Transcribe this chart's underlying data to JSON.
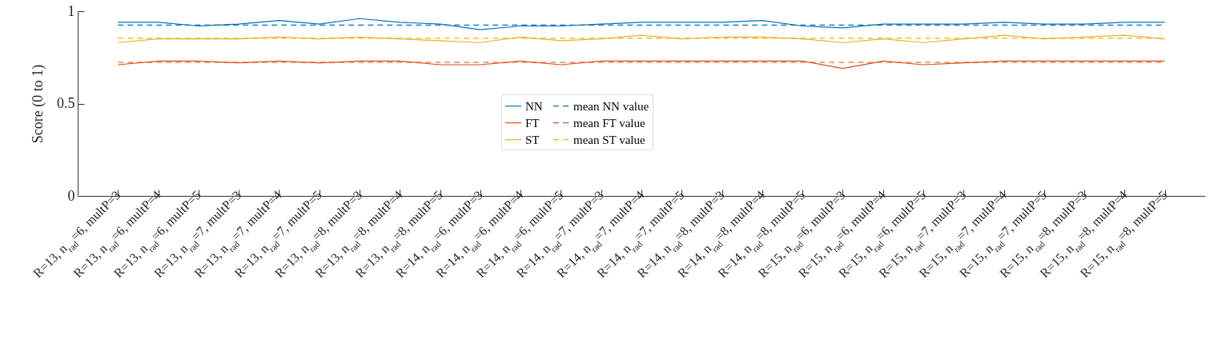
{
  "chart_data": {
    "type": "line",
    "ylabel": "Score (0 to 1)",
    "ylim": [
      0,
      1
    ],
    "yticks": [
      0,
      0.5,
      1
    ],
    "legend": "center",
    "grid": false,
    "categories": [
      "R=13, n$_{rad}$=6, multP=3",
      "R=13, n$_{rad}$=6, multP=4",
      "R=13, n$_{rad}$=6, multP=5",
      "R=13, n$_{rad}$=7, multP=3",
      "R=13, n$_{rad}$=7, multP=4",
      "R=13, n$_{rad}$=7, multP=5",
      "R=13, n$_{rad}$=8, multP=3",
      "R=13, n$_{rad}$=8, multP=4",
      "R=13, n$_{rad}$=8, multP=5",
      "R=14, n$_{rad}$=6, multP=3",
      "R=14, n$_{rad}$=6, multP=4",
      "R=14, n$_{rad}$=6, multP=5",
      "R=14, n$_{rad}$=7, multP=3",
      "R=14, n$_{rad}$=7, multP=4",
      "R=14, n$_{rad}$=7, multP=5",
      "R=14, n$_{rad}$=8, multP=3",
      "R=14, n$_{rad}$=8, multP=4",
      "R=14, n$_{rad}$=8, multP=5",
      "R=15, n$_{rad}$=6, multP=3",
      "R=15, n$_{rad}$=6, multP=4",
      "R=15, n$_{rad}$=6, multP=5",
      "R=15, n$_{rad}$=7, multP=3",
      "R=15, n$_{rad}$=7, multP=4",
      "R=15, n$_{rad}$=7, multP=5",
      "R=15, n$_{rad}$=8, multP=3",
      "R=15, n$_{rad}$=8, multP=4",
      "R=15, n$_{rad}$=8, multP=5"
    ],
    "series": [
      {
        "name": "NN",
        "color": "#0072bd",
        "line_style": "solid",
        "values": [
          0.94,
          0.94,
          0.92,
          0.93,
          0.95,
          0.93,
          0.96,
          0.94,
          0.93,
          0.9,
          0.92,
          0.92,
          0.93,
          0.94,
          0.94,
          0.94,
          0.95,
          0.92,
          0.91,
          0.93,
          0.93,
          0.93,
          0.94,
          0.93,
          0.93,
          0.94,
          0.94
        ]
      },
      {
        "name": "FT",
        "color": "#d95319",
        "line_style": "solid",
        "values": [
          0.71,
          0.73,
          0.73,
          0.72,
          0.73,
          0.72,
          0.73,
          0.73,
          0.71,
          0.71,
          0.73,
          0.71,
          0.73,
          0.73,
          0.73,
          0.73,
          0.73,
          0.73,
          0.69,
          0.73,
          0.71,
          0.72,
          0.73,
          0.73,
          0.73,
          0.73,
          0.73
        ]
      },
      {
        "name": "ST",
        "color": "#edb120",
        "line_style": "solid",
        "values": [
          0.83,
          0.85,
          0.85,
          0.85,
          0.86,
          0.85,
          0.86,
          0.85,
          0.84,
          0.83,
          0.86,
          0.84,
          0.85,
          0.87,
          0.85,
          0.86,
          0.86,
          0.85,
          0.83,
          0.85,
          0.83,
          0.85,
          0.87,
          0.85,
          0.86,
          0.87,
          0.85
        ]
      },
      {
        "name": "mean NN value",
        "color": "#0072bd",
        "line_style": "dashed",
        "values": [
          0.925,
          0.925,
          0.925,
          0.925,
          0.925,
          0.925,
          0.925,
          0.925,
          0.925,
          0.925,
          0.925,
          0.925,
          0.925,
          0.925,
          0.925,
          0.925,
          0.925,
          0.925,
          0.925,
          0.925,
          0.925,
          0.925,
          0.925,
          0.925,
          0.925,
          0.925,
          0.925
        ]
      },
      {
        "name": "mean FT value",
        "color": "#d95319",
        "line_style": "dashed",
        "values": [
          0.723,
          0.723,
          0.723,
          0.723,
          0.723,
          0.723,
          0.723,
          0.723,
          0.723,
          0.723,
          0.723,
          0.723,
          0.723,
          0.723,
          0.723,
          0.723,
          0.723,
          0.723,
          0.723,
          0.723,
          0.723,
          0.723,
          0.723,
          0.723,
          0.723,
          0.723,
          0.723
        ]
      },
      {
        "name": "mean ST value",
        "color": "#edb120",
        "line_style": "dashed",
        "values": [
          0.853,
          0.853,
          0.853,
          0.853,
          0.853,
          0.853,
          0.853,
          0.853,
          0.853,
          0.853,
          0.853,
          0.853,
          0.853,
          0.853,
          0.853,
          0.853,
          0.853,
          0.853,
          0.853,
          0.853,
          0.853,
          0.853,
          0.853,
          0.853,
          0.853,
          0.853,
          0.853
        ]
      }
    ]
  }
}
